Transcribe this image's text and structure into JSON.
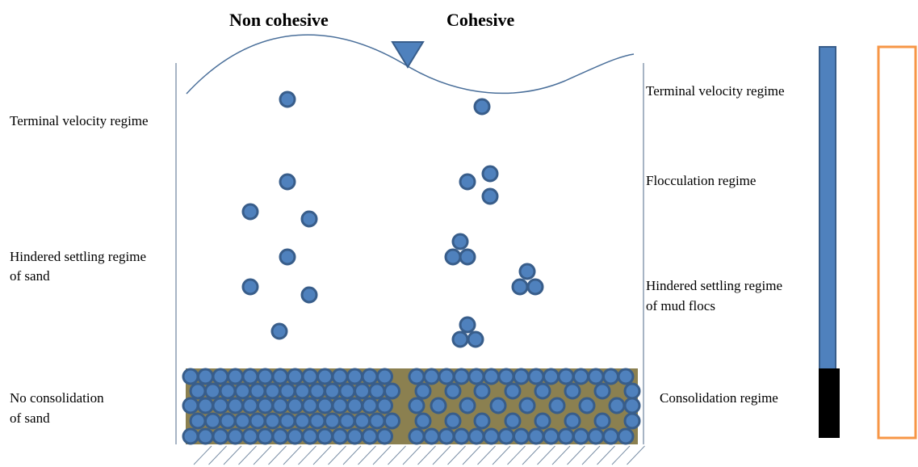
{
  "headers": {
    "non_cohesive": "Non cohesive",
    "cohesive": "Cohesive"
  },
  "left_labels": {
    "terminal": "Terminal velocity regime",
    "hindered_line1": "Hindered settling  regime",
    "hindered_line2": "of sand",
    "consolidation_line1": "No consolidation",
    "consolidation_line2": "of sand"
  },
  "right_labels": {
    "terminal": "Terminal velocity regime",
    "flocculation": "Flocculation regime",
    "hindered_line1": "Hindered settling  regime",
    "hindered_line2": "of mud flocs",
    "consolidation": "Consolidation regime"
  },
  "colors": {
    "particle_fill": "#4f81bd",
    "particle_stroke": "#385d8a",
    "bed_fill": "#8b8050",
    "blue_bar": "#4f81bd",
    "black_bar": "#000000",
    "orange_bar": "#f79646",
    "water_line": "#4a6f9a"
  },
  "icons": {
    "water_level": "inverted-triangle-icon",
    "seabed": "hatched-ground-icon"
  }
}
